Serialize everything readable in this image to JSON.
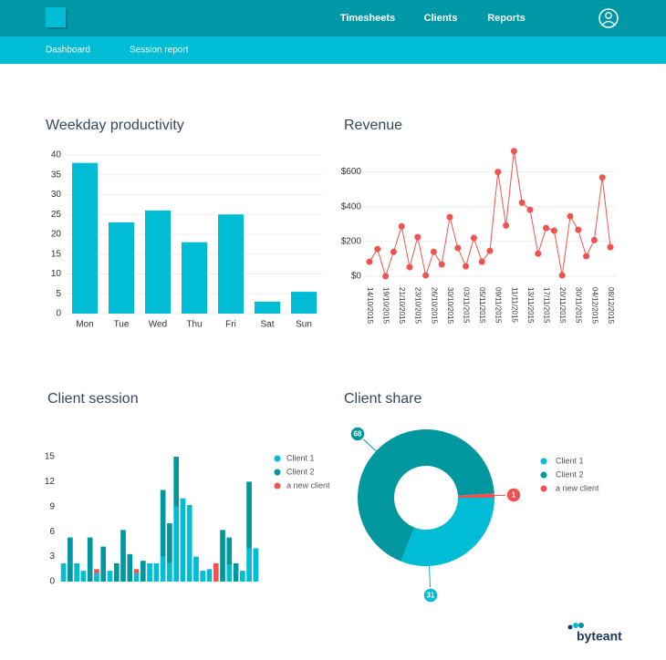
{
  "header": {
    "nav": [
      "Timesheets",
      "Clients",
      "Reports"
    ],
    "subnav": [
      "Dashboard",
      "Session report"
    ]
  },
  "footer": {
    "brand": "byteant"
  },
  "chart_data": [
    {
      "type": "bar",
      "title": "Weekday productivity",
      "categories": [
        "Mon",
        "Tue",
        "Wed",
        "Thu",
        "Fri",
        "Sat",
        "Sun"
      ],
      "values": [
        38,
        23,
        26,
        18,
        25,
        3,
        5.5
      ],
      "color": "#00bcd4",
      "ylim": [
        0,
        40
      ],
      "yticks": [
        0,
        5,
        10,
        15,
        20,
        25,
        30,
        35,
        40
      ],
      "grid": true
    },
    {
      "type": "line",
      "title": "Revenue",
      "categories": [
        "14/10/2015",
        null,
        "19/10/2015",
        null,
        "21/10/2015",
        null,
        "23/10/2015",
        null,
        "26/10/2015",
        null,
        "30/10/2015",
        null,
        "03/11/2015",
        null,
        "05/11/2015",
        null,
        "09/11/2015",
        null,
        "11/11/2015",
        null,
        "13/11/2015",
        null,
        "17/11/2015",
        null,
        "20/11/2015",
        null,
        "30/11/2015",
        null,
        "04/12/2015",
        null,
        "08/12/2015"
      ],
      "values": [
        83,
        156,
        0,
        140,
        287,
        52,
        225,
        5,
        140,
        68,
        340,
        162,
        57,
        220,
        83,
        146,
        600,
        292,
        720,
        423,
        382,
        130,
        277,
        262,
        5,
        345,
        267,
        115,
        208,
        568,
        167
      ],
      "color": "#ef5350",
      "ylim": [
        0,
        750
      ],
      "yticks": [
        {
          "value": 0,
          "label": "$0"
        },
        {
          "value": 200,
          "label": "$200"
        },
        {
          "value": 400,
          "label": "$400"
        },
        {
          "value": 600,
          "label": "$600"
        }
      ],
      "grid": true
    },
    {
      "type": "stacked_bar",
      "title": "Client session",
      "series": [
        {
          "name": "Client 1",
          "color": "#00bcd4",
          "values": [
            2.2,
            0,
            2.2,
            1.3,
            0,
            1,
            0,
            1.3,
            0,
            0,
            0,
            1,
            0,
            2.2,
            2.2,
            3,
            2.2,
            9,
            10,
            9.2,
            3,
            1.3,
            1.5,
            0,
            0,
            2,
            0,
            1.3,
            4,
            4
          ]
        },
        {
          "name": "Client 2",
          "color": "#00979f",
          "values": [
            0,
            5.3,
            0,
            0,
            5.3,
            0,
            4.2,
            0,
            2.2,
            6.2,
            3.3,
            0,
            2.5,
            0,
            0,
            8,
            4.8,
            6,
            0,
            0,
            0,
            0,
            0,
            0,
            6.2,
            3.3,
            2.2,
            0,
            8,
            0
          ]
        },
        {
          "name": "a new client",
          "color": "#ef5350",
          "values": [
            0,
            0,
            0,
            0,
            0,
            0.5,
            0,
            0,
            0,
            0,
            0,
            0.5,
            0,
            0,
            0,
            0,
            0,
            0,
            0,
            0,
            0,
            0,
            0,
            2.2,
            0,
            0,
            0,
            0,
            0,
            0
          ]
        }
      ],
      "ylim": [
        0,
        15
      ],
      "yticks": [
        0,
        3,
        6,
        9,
        12,
        15
      ],
      "grid": false
    },
    {
      "type": "donut",
      "title": "Client share",
      "categories": [
        "Client 1",
        "Client 2",
        "a new client"
      ],
      "values": [
        31,
        68,
        1
      ],
      "colors": [
        "#00bcd4",
        "#00979f",
        "#ef5350"
      ]
    }
  ]
}
